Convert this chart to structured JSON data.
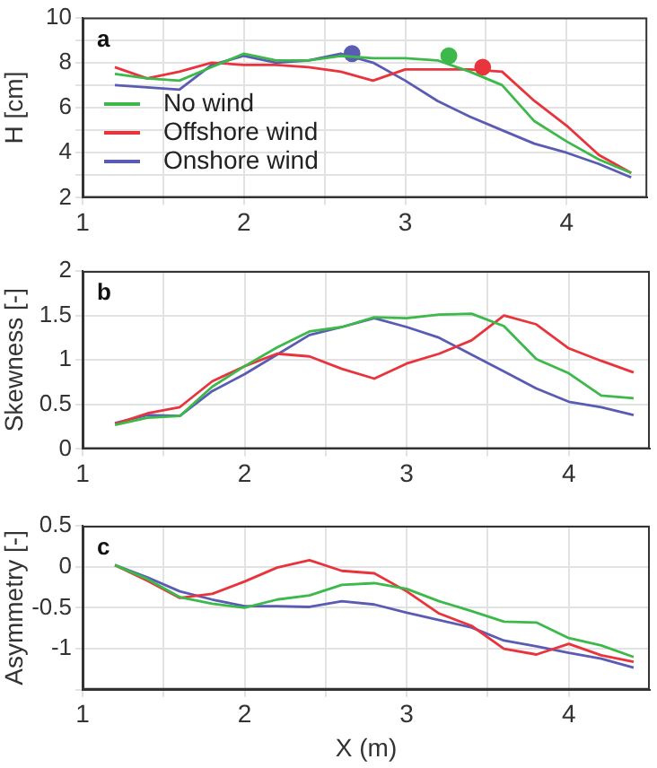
{
  "chart_data": [
    {
      "type": "line",
      "annotations": [
        "a"
      ],
      "ylabel": "H [cm]",
      "x": [
        1.2,
        1.4,
        1.6,
        1.8,
        2.0,
        2.2,
        2.4,
        2.6,
        2.8,
        3.0,
        3.2,
        3.4,
        3.6,
        3.8,
        4.0,
        4.2,
        4.4
      ],
      "xlim": [
        1,
        4.5
      ],
      "xticks": [
        1,
        {
          "value": 1.5,
          "label": null
        },
        2,
        {
          "value": 2.5,
          "label": null
        },
        3,
        {
          "value": 3.5,
          "label": null
        },
        4
      ],
      "ylim": [
        2,
        10
      ],
      "yticks": [
        2,
        {
          "value": 3,
          "label": null
        },
        4,
        {
          "value": 5,
          "label": null
        },
        6,
        {
          "value": 7,
          "label": null
        },
        8,
        {
          "value": 9,
          "label": null
        },
        10
      ],
      "grid": true,
      "legend": "left",
      "marker": "none",
      "series": [
        {
          "name": "No wind",
          "color": "#3cb94a",
          "values": [
            7.5,
            7.3,
            7.2,
            7.8,
            8.4,
            8.1,
            8.1,
            8.3,
            8.2,
            8.2,
            8.1,
            7.6,
            7.0,
            5.4,
            4.5,
            3.7,
            3.1
          ]
        },
        {
          "name": "Offshore wind",
          "color": "#e8343c",
          "values": [
            7.8,
            7.3,
            7.6,
            8.0,
            7.9,
            7.9,
            7.8,
            7.6,
            7.2,
            7.7,
            7.7,
            7.7,
            7.6,
            6.3,
            5.2,
            3.9,
            3.1
          ]
        },
        {
          "name": "Onshore wind",
          "color": "#5a5cb4",
          "values": [
            7.0,
            6.9,
            6.8,
            7.9,
            8.3,
            8.0,
            8.1,
            8.4,
            8.0,
            7.2,
            6.3,
            5.6,
            5.0,
            4.4,
            4.0,
            3.5,
            2.9
          ]
        },
        {
          "type": "scatter",
          "marker": "circle",
          "color": "#5a5cb4",
          "x": [
            2.67
          ],
          "values": [
            8.4
          ]
        },
        {
          "type": "scatter",
          "marker": "circle",
          "color": "#3cb94a",
          "x": [
            3.27
          ],
          "values": [
            8.3
          ]
        },
        {
          "type": "scatter",
          "marker": "circle",
          "color": "#e8343c",
          "x": [
            3.48
          ],
          "values": [
            7.8
          ]
        }
      ]
    },
    {
      "type": "line",
      "annotations": [
        "b"
      ],
      "ylabel": "Skewness [-]",
      "x": [
        1.2,
        1.4,
        1.6,
        1.8,
        2.0,
        2.2,
        2.4,
        2.6,
        2.8,
        3.0,
        3.2,
        3.4,
        3.6,
        3.8,
        4.0,
        4.2,
        4.4
      ],
      "xlim": [
        1,
        4.5
      ],
      "xticks": [
        1,
        {
          "value": 1.5,
          "label": null
        },
        2,
        {
          "value": 2.5,
          "label": null
        },
        3,
        {
          "value": 3.5,
          "label": null
        },
        4
      ],
      "ylim": [
        0,
        2
      ],
      "yticks": [
        0,
        0.5,
        1,
        1.5,
        2
      ],
      "grid": true,
      "marker": "none",
      "series": [
        {
          "color": "#3cb94a",
          "values": [
            0.27,
            0.35,
            0.37,
            0.7,
            0.93,
            1.14,
            1.32,
            1.37,
            1.48,
            1.47,
            1.51,
            1.52,
            1.38,
            1.01,
            0.85,
            0.6,
            0.57
          ]
        },
        {
          "color": "#e8343c",
          "values": [
            0.28,
            0.4,
            0.47,
            0.76,
            0.93,
            1.07,
            1.04,
            0.9,
            0.79,
            0.96,
            1.07,
            1.22,
            1.5,
            1.4,
            1.13,
            0.99,
            0.86
          ]
        },
        {
          "color": "#5a5cb4",
          "values": [
            0.29,
            0.38,
            0.37,
            0.65,
            0.84,
            1.06,
            1.28,
            1.37,
            1.47,
            1.37,
            1.25,
            1.06,
            0.87,
            0.68,
            0.53,
            0.47,
            0.38
          ]
        }
      ]
    },
    {
      "type": "line",
      "annotations": [
        "c"
      ],
      "xlabel": "X (m)",
      "ylabel": "Asymmetry [-]",
      "x": [
        1.2,
        1.4,
        1.6,
        1.8,
        2.0,
        2.2,
        2.4,
        2.6,
        2.8,
        3.0,
        3.2,
        3.4,
        3.6,
        3.8,
        4.0,
        4.2,
        4.4
      ],
      "xlim": [
        1,
        4.5
      ],
      "xticks": [
        1,
        {
          "value": 1.5,
          "label": null
        },
        2,
        {
          "value": 2.5,
          "label": null
        },
        3,
        {
          "value": 3.5,
          "label": null
        },
        4
      ],
      "ylim": [
        -1.5,
        0.5
      ],
      "yticks": [
        {
          "value": -1.5,
          "label": null
        },
        -1,
        -0.5,
        0,
        0.5
      ],
      "grid": true,
      "marker": "none",
      "series": [
        {
          "color": "#3cb94a",
          "values": [
            0.02,
            -0.15,
            -0.37,
            -0.45,
            -0.5,
            -0.4,
            -0.35,
            -0.22,
            -0.2,
            -0.27,
            -0.42,
            -0.54,
            -0.67,
            -0.68,
            -0.87,
            -0.96,
            -1.1
          ]
        },
        {
          "color": "#e8343c",
          "values": [
            0.02,
            -0.17,
            -0.38,
            -0.33,
            -0.18,
            -0.01,
            0.08,
            -0.05,
            -0.08,
            -0.3,
            -0.57,
            -0.72,
            -1.0,
            -1.07,
            -0.94,
            -1.08,
            -1.16
          ]
        },
        {
          "color": "#5a5cb4",
          "values": [
            0.02,
            -0.13,
            -0.3,
            -0.4,
            -0.48,
            -0.48,
            -0.49,
            -0.42,
            -0.46,
            -0.56,
            -0.65,
            -0.74,
            -0.9,
            -0.97,
            -1.05,
            -1.12,
            -1.23
          ]
        }
      ]
    }
  ]
}
